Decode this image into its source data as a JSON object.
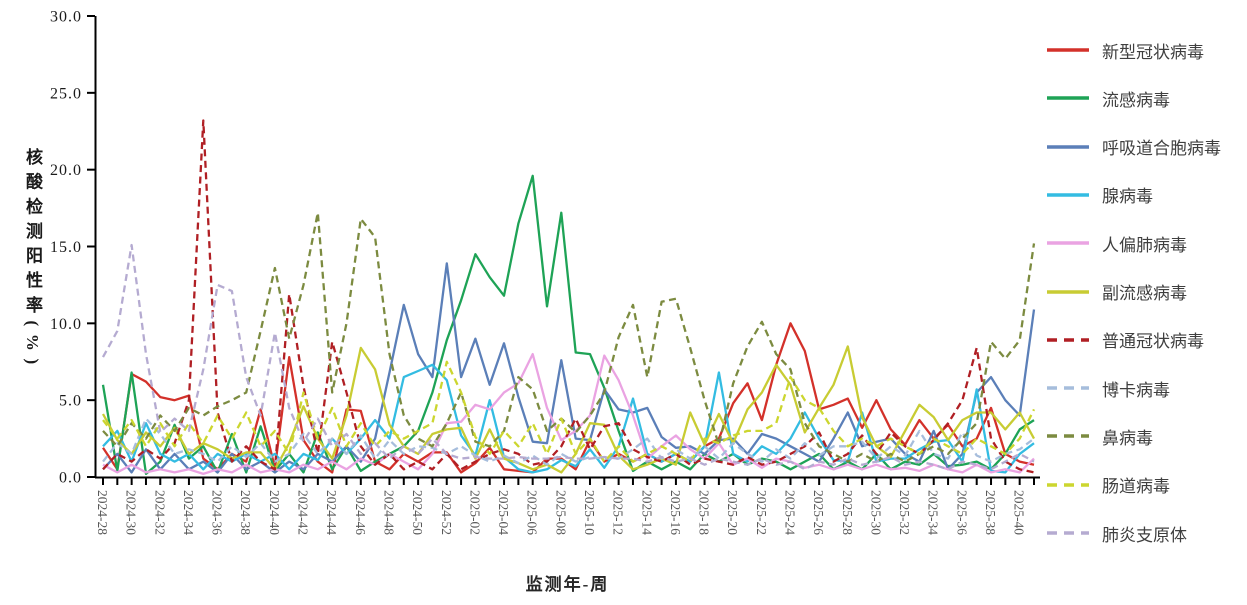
{
  "chart_data": {
    "type": "line",
    "title": "",
    "xlabel": "监测年-周",
    "ylabel": "核酸检测阳性率(%)",
    "ylim": [
      0,
      30
    ],
    "ytick_step": 5,
    "x_label_every": 2,
    "grid": false,
    "legend_position": "right",
    "categories": [
      "2024-28",
      "2024-29",
      "2024-30",
      "2024-31",
      "2024-32",
      "2024-33",
      "2024-34",
      "2024-35",
      "2024-36",
      "2024-37",
      "2024-38",
      "2024-39",
      "2024-40",
      "2024-41",
      "2024-42",
      "2024-43",
      "2024-44",
      "2024-45",
      "2024-46",
      "2024-47",
      "2024-48",
      "2024-49",
      "2024-50",
      "2024-51",
      "2024-52",
      "2025-01",
      "2025-02",
      "2025-03",
      "2025-04",
      "2025-05",
      "2025-06",
      "2025-07",
      "2025-08",
      "2025-09",
      "2025-10",
      "2025-11",
      "2025-12",
      "2025-13",
      "2025-14",
      "2025-15",
      "2025-16",
      "2025-17",
      "2025-18",
      "2025-19",
      "2025-20",
      "2025-21",
      "2025-22",
      "2025-23",
      "2025-24",
      "2025-25",
      "2025-26",
      "2025-27",
      "2025-28",
      "2025-29",
      "2025-30",
      "2025-31",
      "2025-32",
      "2025-33",
      "2025-34",
      "2025-35",
      "2025-36",
      "2025-37",
      "2025-38",
      "2025-39",
      "2025-40",
      "2025-41"
    ],
    "series": [
      {
        "name": "新型冠状病毒",
        "color": "#d3312a",
        "dash": false,
        "values": [
          1.9,
          0.5,
          6.7,
          6.2,
          5.2,
          5.0,
          5.3,
          1.2,
          0.5,
          1.5,
          1.0,
          4.4,
          0.6,
          7.8,
          2.4,
          1.0,
          0.3,
          4.4,
          4.3,
          1.0,
          0.5,
          1.5,
          1.0,
          1.6,
          1.6,
          0.3,
          0.9,
          1.9,
          0.5,
          0.4,
          0.3,
          1.2,
          1.2,
          0.5,
          2.4,
          1.0,
          1.5,
          1.0,
          1.5,
          1.0,
          1.5,
          1.0,
          2.0,
          2.5,
          4.8,
          6.1,
          3.7,
          7.3,
          10.0,
          8.2,
          4.4,
          4.7,
          5.1,
          3.2,
          5.0,
          3.1,
          2.1,
          3.7,
          2.5,
          3.4,
          2.0,
          2.5,
          4.5,
          1.5,
          1.0,
          0.8
        ]
      },
      {
        "name": "流感病毒",
        "color": "#1ea356",
        "dash": false,
        "values": [
          6.0,
          0.4,
          6.8,
          0.2,
          1.0,
          3.4,
          1.2,
          2.0,
          0.3,
          2.8,
          0.3,
          3.3,
          0.4,
          1.5,
          0.3,
          2.9,
          0.5,
          2.0,
          0.4,
          1.0,
          1.5,
          2.0,
          3.0,
          5.5,
          8.9,
          11.5,
          14.5,
          13.0,
          11.8,
          16.5,
          19.6,
          11.1,
          17.2,
          8.1,
          8.0,
          5.8,
          3.0,
          0.4,
          1.0,
          0.5,
          1.0,
          0.5,
          1.5,
          1.0,
          1.5,
          0.8,
          1.2,
          1.0,
          0.5,
          1.0,
          1.5,
          0.5,
          1.0,
          0.5,
          1.5,
          0.5,
          1.0,
          0.8,
          1.5,
          0.7,
          0.8,
          1.0,
          0.5,
          1.5,
          3.1,
          3.7
        ]
      },
      {
        "name": "呼吸道合胞病毒",
        "color": "#5b7fb8",
        "dash": false,
        "values": [
          0.5,
          1.5,
          0.3,
          1.8,
          0.5,
          1.5,
          0.5,
          1.0,
          0.3,
          1.5,
          0.5,
          1.0,
          0.3,
          1.0,
          0.5,
          1.5,
          1.0,
          2.0,
          1.0,
          2.5,
          6.8,
          11.2,
          8.0,
          6.5,
          13.9,
          6.5,
          9.0,
          6.0,
          8.7,
          5.2,
          2.3,
          2.2,
          7.6,
          2.5,
          2.4,
          5.7,
          4.4,
          4.2,
          4.5,
          2.6,
          1.9,
          2.0,
          1.5,
          2.4,
          2.5,
          1.5,
          2.8,
          2.5,
          2.0,
          1.5,
          1.0,
          2.5,
          4.2,
          2.0,
          2.3,
          2.5,
          1.5,
          1.0,
          3.0,
          0.5,
          1.5,
          5.5,
          6.5,
          5.0,
          4.0,
          10.9
        ]
      },
      {
        "name": "腺病毒",
        "color": "#33bce2",
        "dash": false,
        "values": [
          2.0,
          3.0,
          1.0,
          3.5,
          1.5,
          1.0,
          1.5,
          0.5,
          1.5,
          1.0,
          1.5,
          1.0,
          1.5,
          0.5,
          1.5,
          1.1,
          2.5,
          1.5,
          2.5,
          3.7,
          2.5,
          6.5,
          6.9,
          7.3,
          6.3,
          2.7,
          1.4,
          5.0,
          1.3,
          0.5,
          0.3,
          0.5,
          1.1,
          0.7,
          1.8,
          0.6,
          2.0,
          5.1,
          1.5,
          1.0,
          1.5,
          1.0,
          2.0,
          6.8,
          1.5,
          1.0,
          2.0,
          1.5,
          2.5,
          4.2,
          2.5,
          1.1,
          1.0,
          4.2,
          1.0,
          1.2,
          1.2,
          1.8,
          2.3,
          2.4,
          1.0,
          5.7,
          0.4,
          0.3,
          1.5,
          2.2
        ]
      },
      {
        "name": "人偏肺病毒",
        "color": "#eaa3e2",
        "dash": false,
        "values": [
          0.8,
          0.3,
          0.8,
          0.3,
          0.5,
          0.3,
          0.5,
          0.2,
          0.5,
          0.3,
          0.8,
          0.3,
          0.5,
          0.3,
          0.8,
          0.5,
          1.0,
          0.5,
          1.2,
          0.8,
          1.5,
          1.0,
          0.5,
          1.5,
          3.5,
          3.6,
          4.7,
          4.4,
          5.5,
          6.1,
          8.0,
          4.5,
          2.4,
          3.0,
          4.0,
          7.9,
          6.3,
          4.0,
          1.2,
          2.0,
          2.7,
          1.8,
          1.2,
          2.2,
          0.8,
          1.2,
          0.6,
          1.2,
          1.0,
          0.6,
          0.8,
          0.5,
          0.8,
          0.5,
          0.8,
          0.5,
          0.6,
          0.4,
          0.8,
          0.5,
          0.3,
          0.8,
          0.3,
          0.5,
          0.3,
          1.2
        ]
      },
      {
        "name": "副流感病毒",
        "color": "#c8cc33",
        "dash": false,
        "values": [
          4.1,
          2.4,
          1.5,
          2.9,
          2.0,
          3.2,
          1.5,
          2.2,
          1.8,
          1.2,
          1.6,
          1.6,
          0.5,
          2.2,
          4.6,
          2.5,
          1.2,
          4.0,
          8.4,
          7.0,
          3.4,
          2.0,
          1.5,
          2.8,
          3.1,
          3.2,
          1.2,
          3.1,
          1.2,
          0.9,
          0.5,
          0.8,
          0.3,
          1.5,
          3.5,
          3.4,
          1.4,
          0.5,
          0.8,
          1.2,
          0.8,
          4.2,
          2.1,
          4.1,
          2.2,
          4.4,
          5.5,
          7.3,
          6.0,
          2.9,
          4.5,
          6.0,
          8.5,
          3.9,
          2.0,
          1.3,
          3.0,
          4.7,
          3.9,
          2.4,
          3.7,
          4.2,
          4.2,
          3.1,
          4.2,
          2.5
        ]
      },
      {
        "name": "普通冠状病毒",
        "color": "#b01f24",
        "dash": true,
        "values": [
          0.5,
          1.5,
          1.0,
          1.8,
          1.2,
          2.2,
          5.0,
          23.2,
          4.2,
          1.0,
          2.0,
          1.0,
          0.5,
          11.9,
          5.9,
          1.5,
          8.8,
          5.5,
          2.0,
          0.8,
          1.5,
          0.5,
          1.0,
          0.5,
          1.5,
          0.5,
          1.0,
          1.5,
          1.8,
          1.5,
          0.8,
          1.0,
          2.0,
          3.8,
          1.8,
          3.3,
          3.5,
          1.8,
          1.3,
          1.0,
          1.5,
          0.8,
          1.2,
          1.0,
          0.8,
          1.3,
          0.8,
          1.0,
          1.5,
          2.0,
          2.9,
          1.0,
          1.5,
          2.7,
          1.5,
          2.9,
          2.0,
          1.5,
          2.4,
          3.5,
          5.0,
          8.4,
          2.5,
          1.0,
          0.5,
          0.3
        ]
      },
      {
        "name": "博卡病毒",
        "color": "#a6bddc",
        "dash": true,
        "values": [
          1.0,
          2.2,
          1.5,
          3.8,
          2.8,
          1.5,
          1.8,
          1.5,
          1.0,
          2.0,
          1.3,
          2.2,
          1.0,
          1.5,
          2.8,
          1.5,
          2.5,
          1.5,
          2.7,
          1.2,
          2.4,
          1.5,
          2.0,
          1.9,
          1.5,
          2.0,
          1.4,
          1.0,
          1.4,
          0.9,
          1.4,
          0.8,
          1.5,
          1.0,
          1.3,
          1.2,
          1.2,
          1.8,
          2.5,
          1.2,
          1.8,
          1.2,
          2.0,
          1.2,
          2.2,
          1.5,
          1.0,
          1.8,
          1.2,
          2.2,
          1.4,
          2.0,
          2.0,
          2.3,
          1.2,
          2.0,
          1.4,
          3.0,
          1.5,
          1.2,
          2.9,
          1.4,
          1.0,
          1.5,
          1.8,
          2.5
        ]
      },
      {
        "name": "鼻病毒",
        "color": "#7c8b40",
        "dash": true,
        "values": [
          3.0,
          2.0,
          3.5,
          2.5,
          4.0,
          3.0,
          4.5,
          4.0,
          4.6,
          5.0,
          5.5,
          9.5,
          13.6,
          9.0,
          12.5,
          17.2,
          5.5,
          10.0,
          16.8,
          15.6,
          8.0,
          4.0,
          2.5,
          2.0,
          3.5,
          5.5,
          2.3,
          2.0,
          3.0,
          6.5,
          5.7,
          3.0,
          3.8,
          2.9,
          4.0,
          5.5,
          9.1,
          11.2,
          6.5,
          11.4,
          11.6,
          8.4,
          5.0,
          2.1,
          6.1,
          8.5,
          10.1,
          8.0,
          7.0,
          3.5,
          2.0,
          1.5,
          1.0,
          1.5,
          1.0,
          1.5,
          1.0,
          1.5,
          2.0,
          1.5,
          2.5,
          3.5,
          8.8,
          7.7,
          8.9,
          15.2
        ]
      },
      {
        "name": "肠道病毒",
        "color": "#ccd62f",
        "dash": true,
        "values": [
          3.7,
          2.5,
          3.7,
          2.0,
          3.5,
          2.0,
          3.5,
          2.2,
          4.0,
          2.5,
          4.2,
          2.0,
          3.0,
          1.5,
          5.5,
          2.5,
          4.5,
          2.0,
          3.5,
          2.0,
          3.0,
          2.5,
          3.0,
          3.5,
          7.5,
          5.5,
          2.6,
          1.5,
          3.0,
          2.0,
          3.5,
          1.5,
          3.8,
          1.5,
          2.5,
          1.0,
          2.0,
          1.0,
          1.5,
          2.0,
          1.5,
          1.0,
          2.5,
          2.2,
          2.7,
          3.0,
          3.0,
          3.5,
          6.5,
          5.0,
          4.5,
          3.0,
          2.0,
          2.5,
          2.0,
          2.5,
          2.0,
          1.5,
          2.5,
          2.0,
          1.5,
          2.5,
          2.0,
          1.5,
          2.5,
          4.4
        ]
      },
      {
        "name": "肺炎支原体",
        "color": "#b5abd1",
        "dash": true,
        "values": [
          7.8,
          9.5,
          15.1,
          8.0,
          2.9,
          3.8,
          3.0,
          7.0,
          12.5,
          12.1,
          6.5,
          4.0,
          9.4,
          4.5,
          2.3,
          3.8,
          2.0,
          2.8,
          1.5,
          2.2,
          1.2,
          2.0,
          1.5,
          2.5,
          1.5,
          1.2,
          1.3,
          1.2,
          1.2,
          1.3,
          1.2,
          1.2,
          1.3,
          1.2,
          1.2,
          1.3,
          1.2,
          1.2,
          1.0,
          1.3,
          1.0,
          1.2,
          0.8,
          1.2,
          1.0,
          0.8,
          1.2,
          0.8,
          1.0,
          0.5,
          1.0,
          0.8,
          1.2,
          0.8,
          1.0,
          1.3,
          0.8,
          1.0,
          0.8,
          0.5,
          1.0,
          0.8,
          0.5,
          1.0,
          1.5,
          1.0
        ]
      }
    ]
  }
}
